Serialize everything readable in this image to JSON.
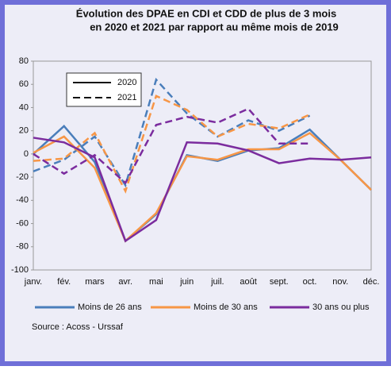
{
  "chart_data": {
    "type": "line",
    "title": [
      "Évolution des DPAE en CDI et CDD de plus de 3 mois",
      "en 2020 et 2021 par rapport au même mois de 2019"
    ],
    "categories": [
      "janv.",
      "fév.",
      "mars",
      "avr.",
      "mai",
      "juin",
      "juil.",
      "août",
      "sept.",
      "oct.",
      "nov.",
      "déc."
    ],
    "line_styles": [
      {
        "label": "2020",
        "dash": "solid"
      },
      {
        "label": "2021",
        "dash": "dashed"
      }
    ],
    "groups": [
      {
        "name": "Moins de 26 ans",
        "color": "#4a7ebb",
        "values": [
          [
            0,
            24,
            -7,
            -75,
            -52,
            -1,
            -6,
            3,
            5,
            21,
            -5,
            -31
          ],
          [
            -15,
            -5,
            15,
            -27,
            64,
            35,
            15,
            29,
            20,
            33,
            null,
            null
          ]
        ]
      },
      {
        "name": "Moins de 30 ans",
        "color": "#f79646",
        "values": [
          [
            1,
            15,
            -12,
            -75,
            -51,
            -2,
            -5,
            4,
            4,
            18,
            -5,
            -31
          ],
          [
            -6,
            -4,
            18,
            -32,
            50,
            38,
            15,
            26,
            22,
            34,
            null,
            null
          ]
        ]
      },
      {
        "name": "30 ans ou plus",
        "color": "#7b2c9e",
        "values": [
          [
            14,
            10,
            -3,
            -75,
            -57,
            10,
            9,
            3,
            -8,
            -4,
            -5,
            -3
          ],
          [
            0,
            -17,
            -1,
            -25,
            25,
            32,
            27,
            39,
            9,
            9,
            null,
            null
          ]
        ]
      }
    ],
    "ylim": [
      -100,
      80
    ],
    "yticks": [
      -100,
      -80,
      -60,
      -40,
      -20,
      0,
      20,
      40,
      60,
      80
    ],
    "grid": false,
    "source": "Source : Acoss - Urssaf"
  }
}
